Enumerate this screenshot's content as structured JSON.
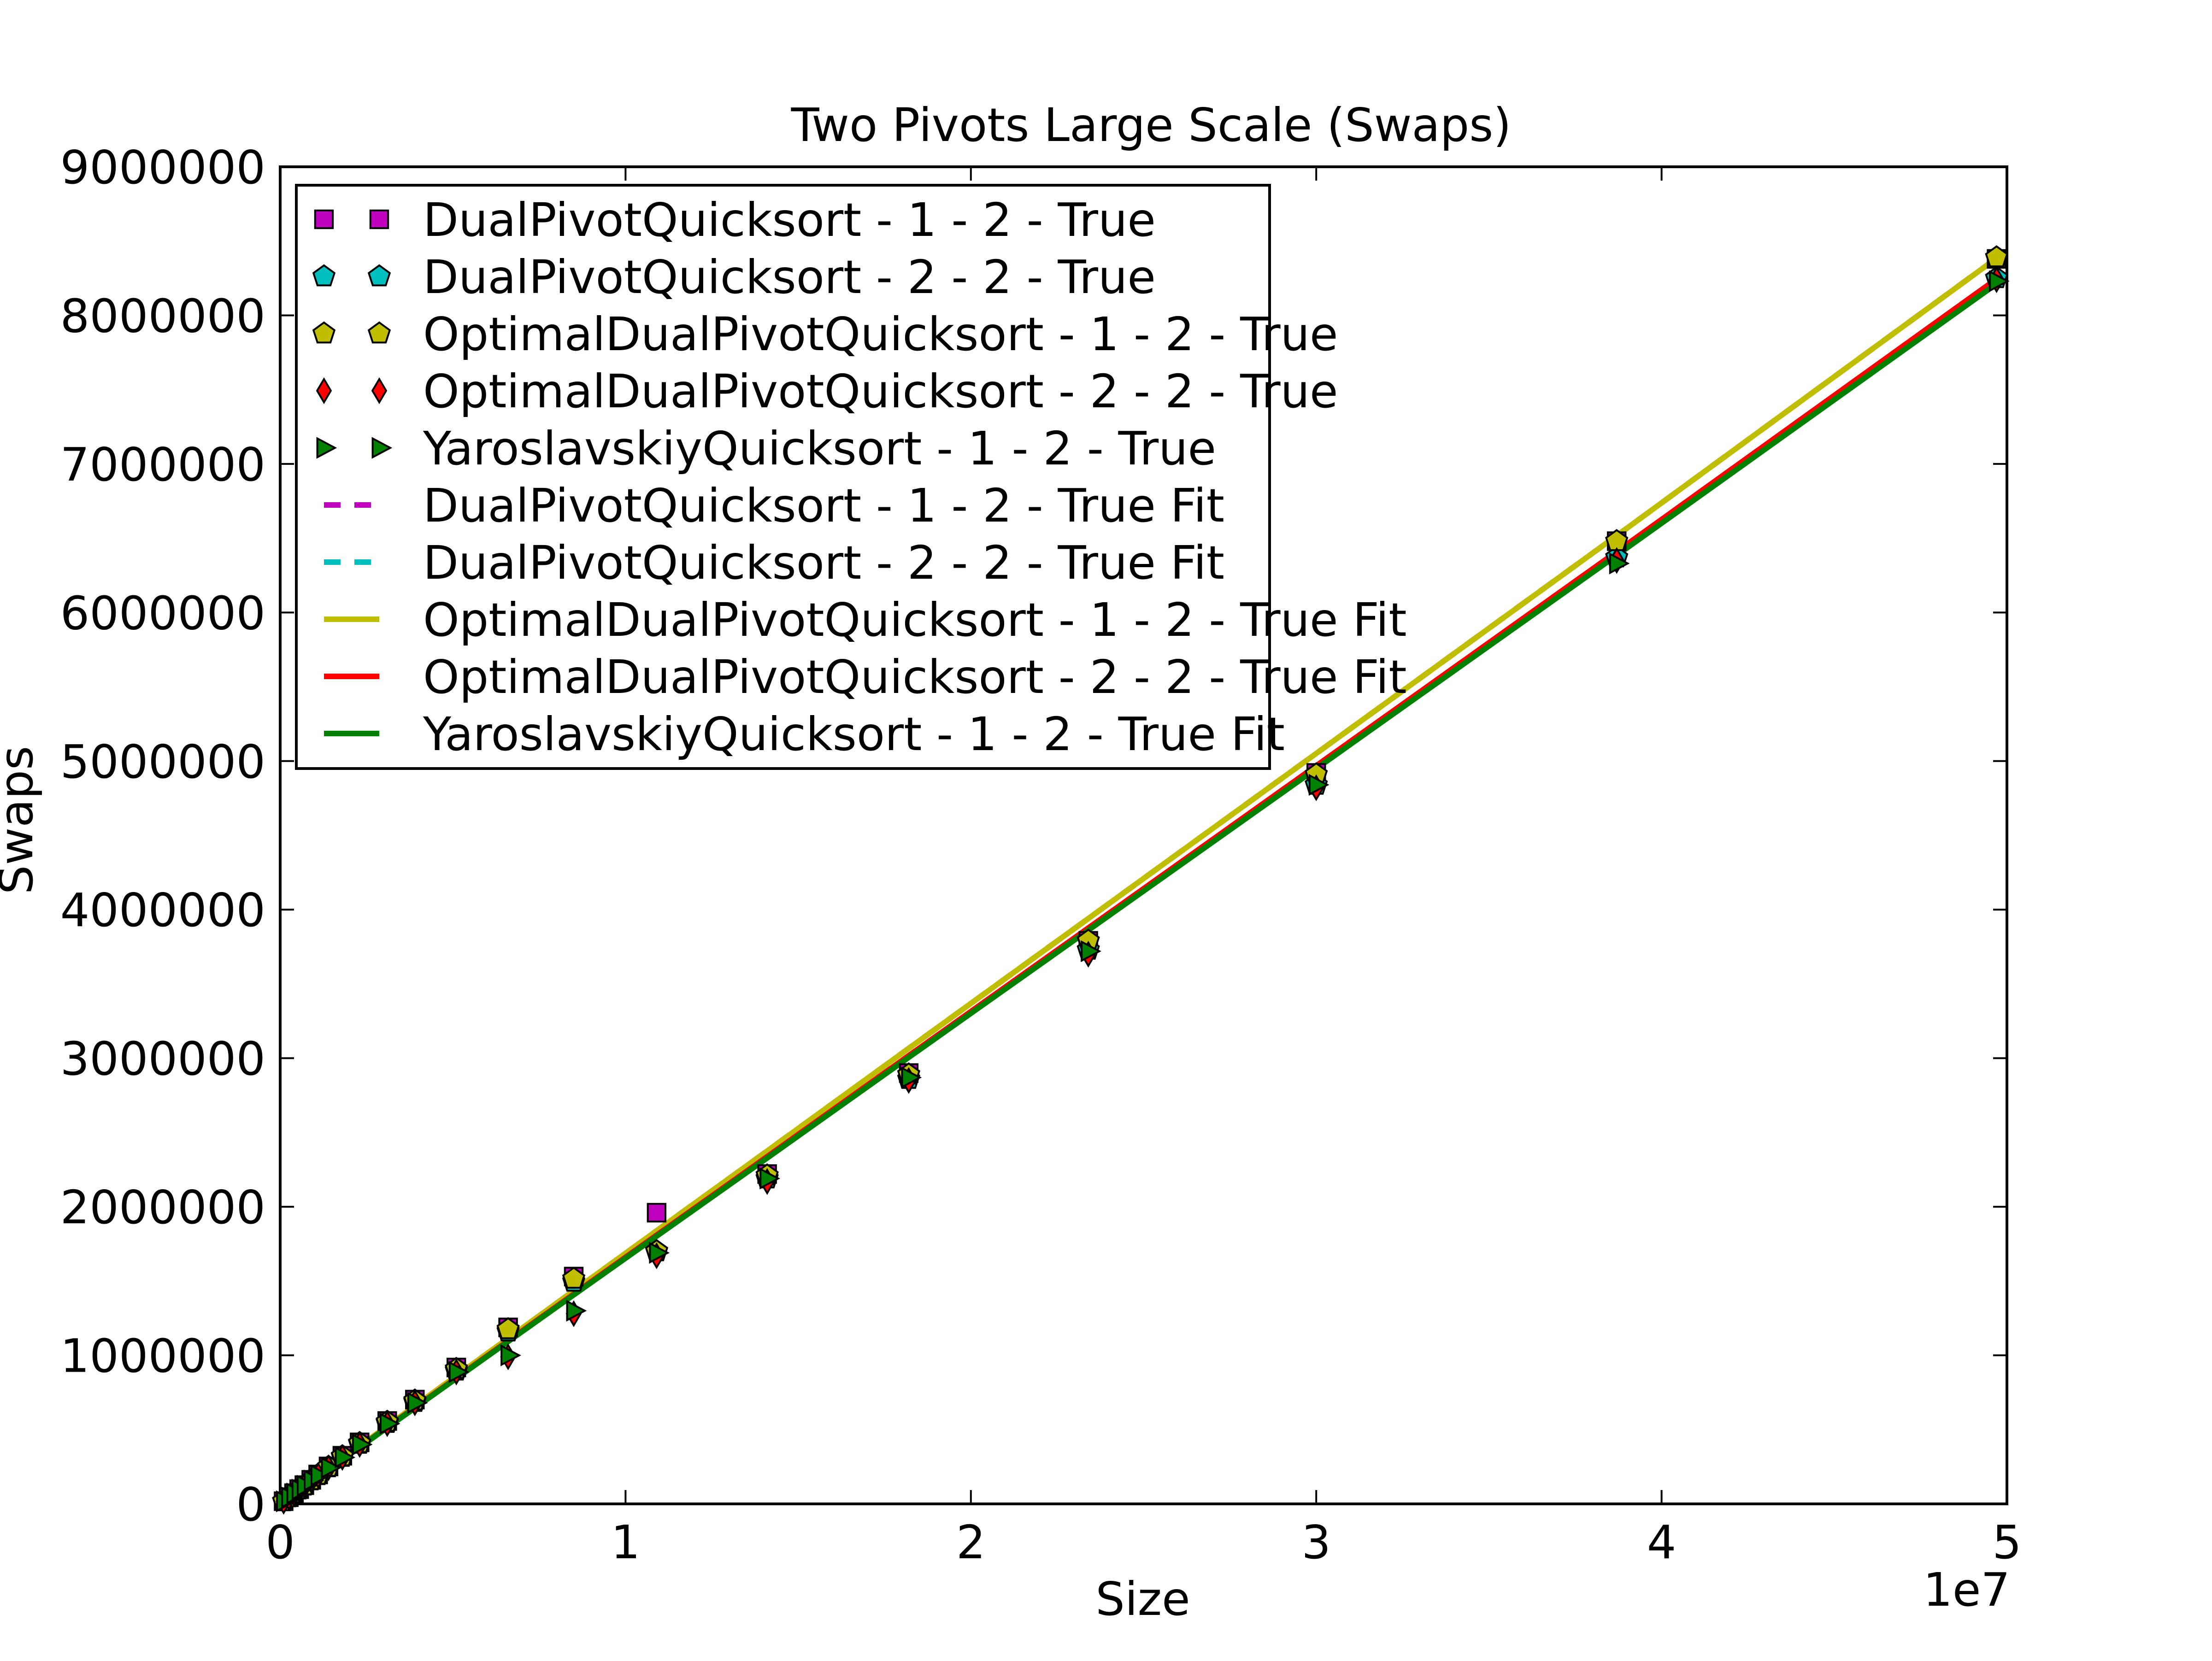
{
  "chart_data": {
    "type": "scatter",
    "title": "Two Pivots Large Scale (Swaps)",
    "xlabel": "Size",
    "ylabel": "Swaps",
    "x_offset_label": "1e7",
    "xlim": [
      0,
      5
    ],
    "ylim": [
      0,
      9000000
    ],
    "x_ticks": [
      0,
      1,
      2,
      3,
      4,
      5
    ],
    "x_tick_labels": [
      "0",
      "1",
      "2",
      "3",
      "4",
      "5"
    ],
    "y_ticks": [
      0,
      1000000,
      2000000,
      3000000,
      4000000,
      5000000,
      6000000,
      7000000,
      8000000,
      9000000
    ],
    "y_tick_labels": [
      "0",
      "1000000",
      "2000000",
      "3000000",
      "4000000",
      "5000000",
      "6000000",
      "7000000",
      "8000000",
      "9000000"
    ],
    "grid": false,
    "legend_position": "top-left",
    "x": [
      0.01,
      0.025,
      0.04,
      0.055,
      0.07,
      0.09,
      0.11,
      0.14,
      0.18,
      0.23,
      0.31,
      0.39,
      0.51,
      0.66,
      0.85,
      1.09,
      1.41,
      1.82,
      2.34,
      3.0,
      3.87,
      4.97
    ],
    "series": [
      {
        "name": "DualPivotQuicksort - 1 - 2 - True",
        "kind": "marker",
        "marker": "square",
        "color": "#bf00bf",
        "values": [
          18000,
          45000,
          72000,
          99000,
          126000,
          162000,
          198000,
          252000,
          324000,
          414000,
          558000,
          702000,
          918000,
          1188000,
          1530000,
          1960000,
          2220000,
          2900000,
          3790000,
          4920000,
          6480000,
          8380000
        ]
      },
      {
        "name": "DualPivotQuicksort - 2 - 2 - True",
        "kind": "marker",
        "marker": "pentagon",
        "color": "#00bfbf",
        "values": [
          17500,
          44000,
          70000,
          96500,
          123000,
          158000,
          193000,
          246000,
          316000,
          404000,
          545000,
          686000,
          897000,
          1160000,
          1495000,
          1700000,
          2190000,
          2860000,
          3730000,
          4840000,
          6370000,
          8250000
        ]
      },
      {
        "name": "OptimalDualPivotQuicksort - 1 - 2 - True",
        "kind": "marker",
        "marker": "pentagon",
        "color": "#bfbf00",
        "values": [
          17800,
          44500,
          71000,
          98000,
          125000,
          160000,
          196000,
          249000,
          320000,
          409000,
          552000,
          695000,
          908000,
          1175000,
          1515000,
          1700000,
          2210000,
          2890000,
          3790000,
          4910000,
          6480000,
          8390000
        ]
      },
      {
        "name": "OptimalDualPivotQuicksort - 2 - 2 - True",
        "kind": "marker",
        "marker": "diamond",
        "color": "#ff0000",
        "values": [
          17400,
          43500,
          69500,
          96000,
          122000,
          157000,
          191000,
          243000,
          313000,
          400000,
          540000,
          680000,
          888000,
          990000,
          1280000,
          1670000,
          2170000,
          2850000,
          3700000,
          4820000,
          6350000,
          8240000
        ]
      },
      {
        "name": "YaroslavskiyQuicksort - 1 - 2 - True",
        "kind": "marker",
        "marker": "triangle-right",
        "color": "#008000",
        "values": [
          17400,
          43500,
          69500,
          96000,
          122000,
          157000,
          191000,
          243000,
          313000,
          400000,
          540000,
          680000,
          888000,
          1000000,
          1300000,
          1690000,
          2190000,
          2870000,
          3720000,
          4840000,
          6330000,
          8230000
        ]
      },
      {
        "name": "DualPivotQuicksort - 1 - 2 - True Fit",
        "kind": "line",
        "dash": "dashed",
        "color": "#bf00bf",
        "values": [
          16900,
          42200,
          67500,
          92800,
          118200,
          152000,
          185800,
          236500,
          304000,
          388500,
          523800,
          659000,
          861700,
          1114400,
          1434400,
          1838300,
          2375200,
          3066000,
          3939800,
          5051000,
          6517000,
          8384800
        ]
      },
      {
        "name": "DualPivotQuicksort - 2 - 2 - True Fit",
        "kind": "line",
        "dash": "dashed",
        "color": "#00bfbf",
        "values": [
          16600,
          41500,
          66500,
          91400,
          116300,
          149600,
          182800,
          232700,
          299200,
          382300,
          515400,
          648400,
          847900,
          1097000,
          1412000,
          1808800,
          2337000,
          3016700,
          3876000,
          4968000,
          6409000,
          8245000
        ]
      },
      {
        "name": "OptimalDualPivotQuicksort - 1 - 2 - True Fit",
        "kind": "line",
        "dash": "solid",
        "color": "#bfbf00",
        "values": [
          16900,
          42200,
          67500,
          92800,
          118200,
          152000,
          185800,
          236500,
          304000,
          388500,
          523800,
          659000,
          861700,
          1114400,
          1434400,
          1838300,
          2375200,
          3066000,
          3939800,
          5051000,
          6517000,
          8384800
        ]
      },
      {
        "name": "OptimalDualPivotQuicksort - 2 - 2 - True Fit",
        "kind": "line",
        "dash": "solid",
        "color": "#ff0000",
        "values": [
          16600,
          41500,
          66500,
          91400,
          116300,
          149600,
          182800,
          232700,
          299200,
          382300,
          515400,
          648400,
          847900,
          1097000,
          1412000,
          1808800,
          2337000,
          3016700,
          3876000,
          4968000,
          6409000,
          8245000
        ]
      },
      {
        "name": "YaroslavskiyQuicksort - 1 - 2 - True Fit",
        "kind": "line",
        "dash": "solid",
        "color": "#008000",
        "values": [
          16550,
          41400,
          66200,
          91000,
          115900,
          149000,
          182100,
          231800,
          298000,
          380800,
          513500,
          646000,
          844800,
          1092900,
          1406700,
          1802000,
          2328000,
          3005400,
          3861300,
          4949000,
          6385000,
          8213000
        ]
      }
    ]
  }
}
